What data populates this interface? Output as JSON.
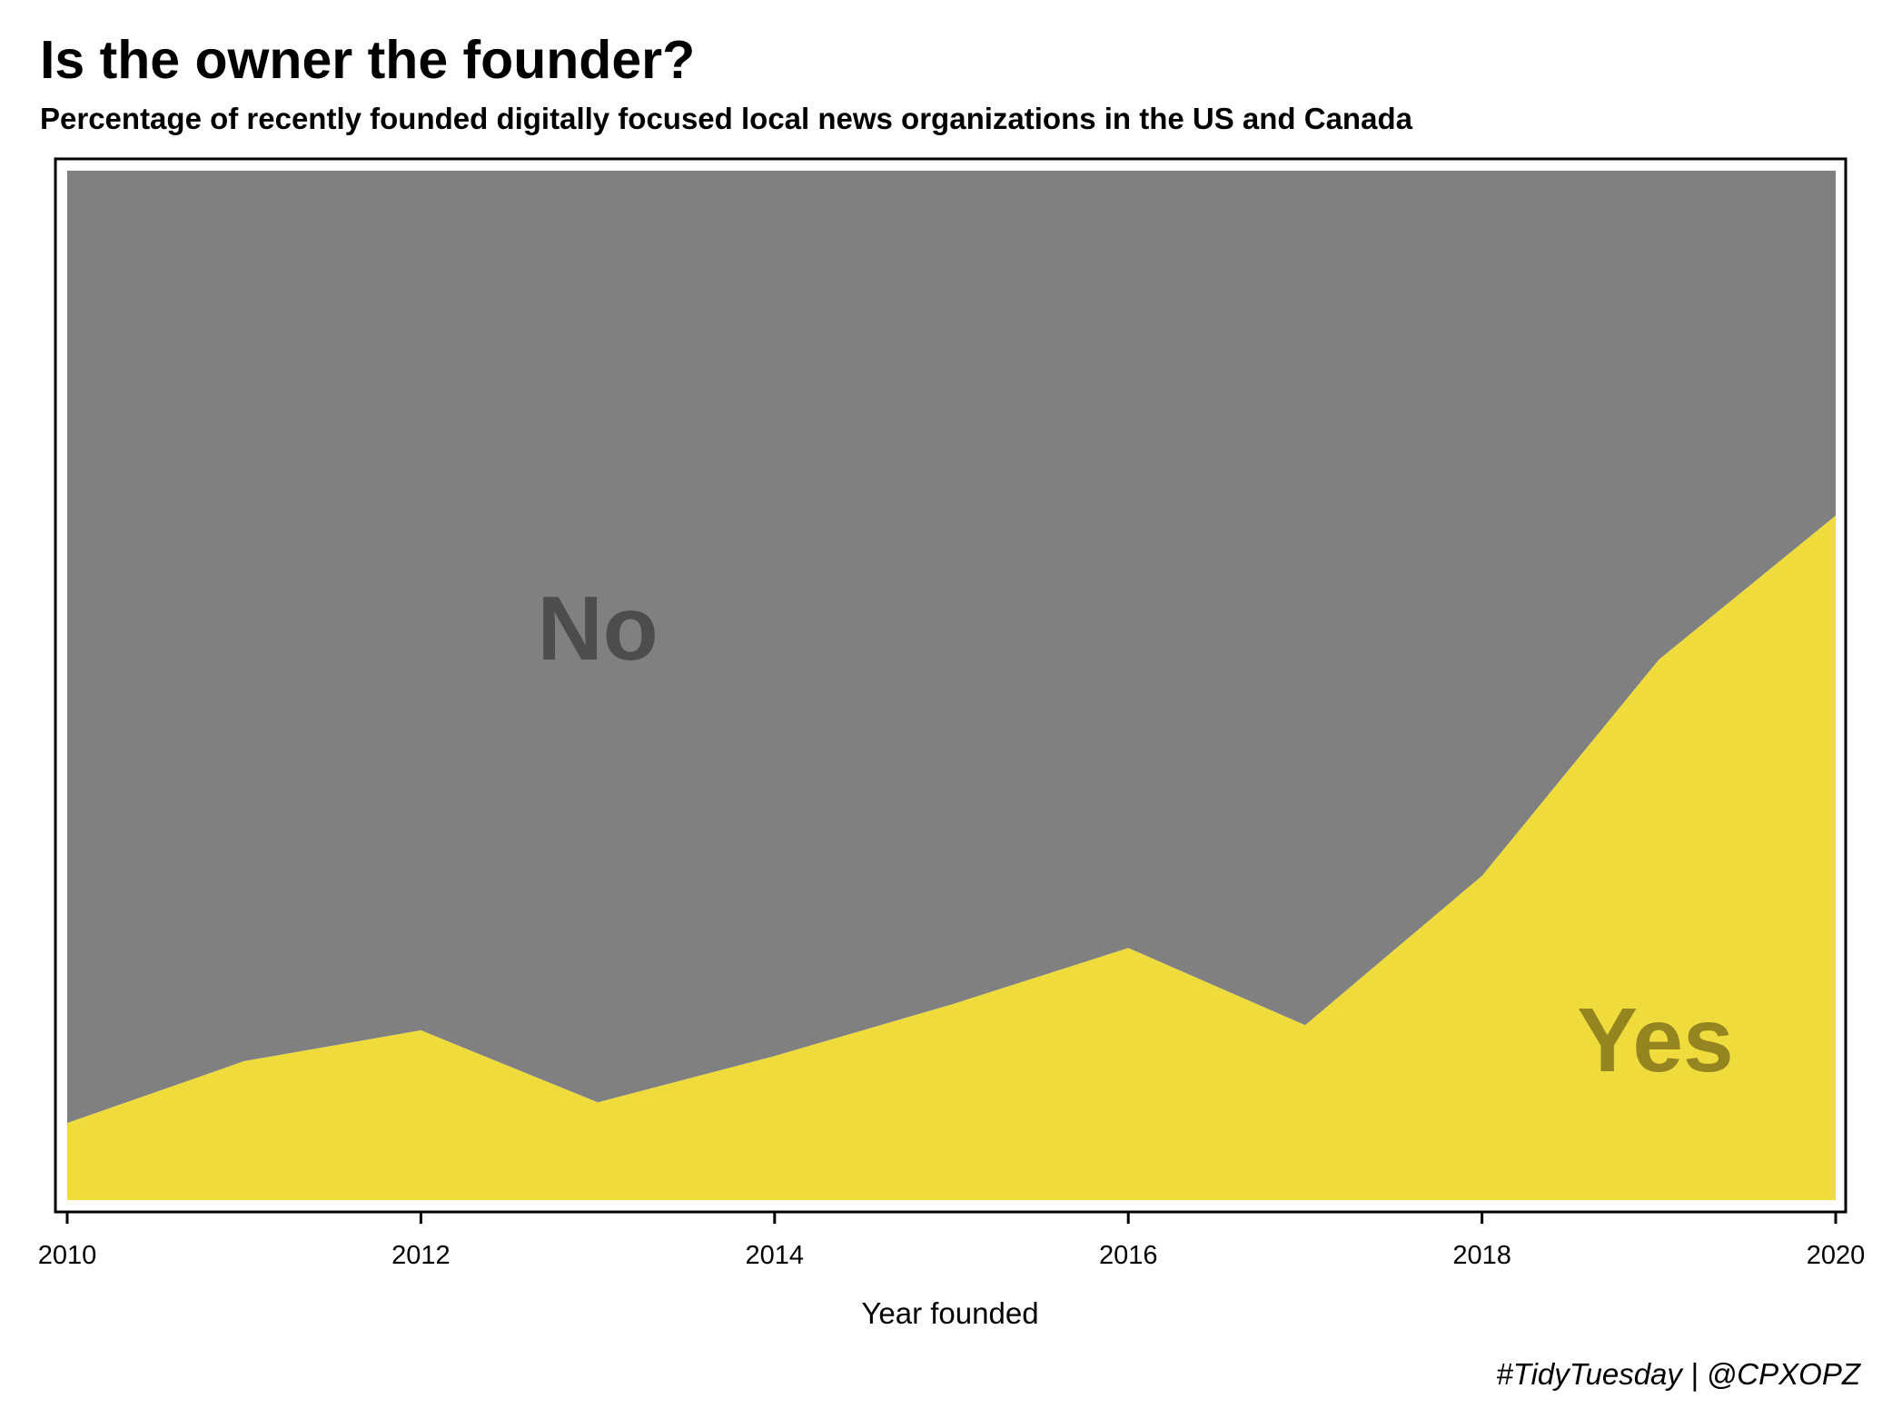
{
  "title": "Is the owner the founder?",
  "subtitle": "Percentage of recently founded digitally focused local news organizations in the US and Canada",
  "caption": "#TidyTuesday | @CPXOPZ",
  "chart_data": {
    "type": "area",
    "stacked": true,
    "normalized": true,
    "xlabel": "Year founded",
    "ylabel": "",
    "x": [
      2010,
      2011,
      2012,
      2013,
      2014,
      2015,
      2016,
      2017,
      2018,
      2019,
      2020
    ],
    "xlim": [
      2010,
      2020
    ],
    "ylim": [
      0,
      100
    ],
    "xticks": [
      "2010",
      "2012",
      "2014",
      "2016",
      "2018",
      "2020"
    ],
    "grid": false,
    "legend": "none",
    "series": [
      {
        "name": "Yes",
        "color": "#efdc3c",
        "label_color": "#948520",
        "values": [
          7.5,
          13.5,
          16.5,
          9.5,
          14,
          19,
          24.5,
          17,
          31.5,
          52.5,
          66.5
        ]
      },
      {
        "name": "No",
        "color": "#808080",
        "label_color": "#4d4d4d",
        "values": [
          92.5,
          86.5,
          83.5,
          90.5,
          86,
          81,
          75.5,
          83,
          68.5,
          47.5,
          33.5
        ]
      }
    ],
    "annotations": [
      {
        "text": "No",
        "series": "No"
      },
      {
        "text": "Yes",
        "series": "Yes"
      }
    ]
  }
}
